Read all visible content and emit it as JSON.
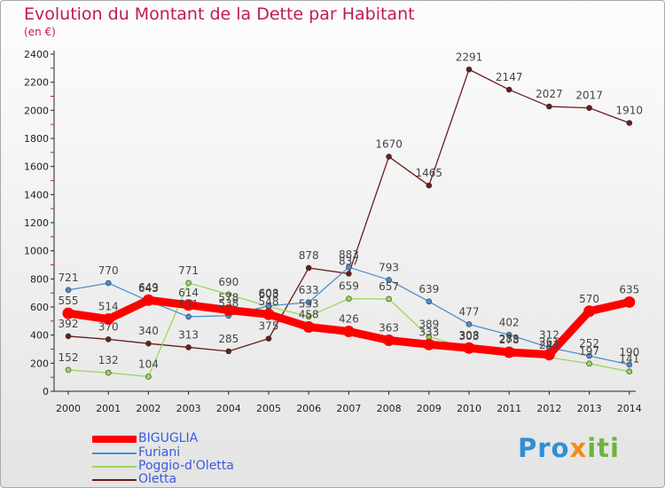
{
  "title": "Evolution du Montant de la Dette par Habitant",
  "subtitle": "(en €)",
  "logo": {
    "p1": "Pro",
    "p2": "x",
    "p3": "iti"
  },
  "chart_data": {
    "type": "line",
    "x": [
      "2000",
      "2001",
      "2002",
      "2003",
      "2004",
      "2005",
      "2006",
      "2007",
      "2008",
      "2009",
      "2010",
      "2011",
      "2012",
      "2013",
      "2014"
    ],
    "ylim": [
      0,
      2400
    ],
    "yticks": [
      0,
      200,
      400,
      600,
      800,
      1000,
      1200,
      1400,
      1600,
      1800,
      2000,
      2200,
      2400
    ],
    "grid": false,
    "legend": "bottom-left",
    "series": [
      {
        "name": "Oletta",
        "color": "#6b1c1c",
        "values": [
          392,
          370,
          340,
          313,
          285,
          375,
          878,
          837,
          1670,
          1465,
          2291,
          2147,
          2027,
          2017,
          1910
        ]
      },
      {
        "name": "Poggio-d'Oletta",
        "color": "#9ad75a",
        "values": [
          152,
          132,
          104,
          771,
          690,
          603,
          533,
          659,
          657,
          389,
          303,
          283,
          241,
          197,
          141
        ]
      },
      {
        "name": "Furiani",
        "color": "#4a8fd0",
        "values": [
          721,
          770,
          643,
          531,
          538,
          608,
          633,
          883,
          793,
          639,
          477,
          402,
          312,
          252,
          190
        ]
      },
      {
        "name": "BIGUGLIA",
        "color": "#ff0000",
        "values": [
          555,
          514,
          649,
          614,
          578,
          548,
          458,
          426,
          363,
          333,
          308,
          278,
          261,
          570,
          635
        ]
      }
    ],
    "labels": [
      [
        "721",
        "770",
        "643",
        "531",
        "538",
        "608",
        "633",
        "883",
        "793",
        "639",
        "477",
        "402",
        "312",
        "252",
        "190"
      ],
      [
        "152",
        "132",
        "104",
        "771",
        "690",
        "603",
        "533",
        "659",
        "657",
        "389",
        "303",
        "283",
        "241",
        "197",
        "141"
      ],
      [
        "392",
        "370",
        "340",
        "313",
        "285",
        "375",
        "878",
        "837",
        "1670",
        "1465",
        "2291",
        "2147",
        "2027",
        "2017",
        "1910"
      ],
      [
        "555",
        "514",
        "649",
        "614",
        "578",
        "548",
        "458",
        "426",
        "363",
        "333",
        "308",
        "278",
        "261",
        "570",
        "635"
      ]
    ],
    "legend_order": [
      "BIGUGLIA",
      "Furiani",
      "Poggio-d'Oletta",
      "Oletta"
    ]
  }
}
